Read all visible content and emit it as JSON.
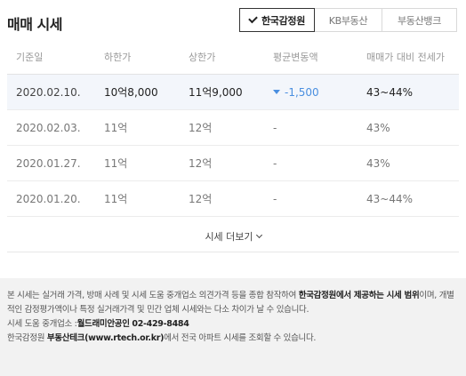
{
  "header": {
    "title": "매매 시세",
    "tabs": [
      {
        "label": "한국감정원",
        "active": true
      },
      {
        "label": "KB부동산",
        "active": false
      },
      {
        "label": "부동산뱅크",
        "active": false
      }
    ]
  },
  "table": {
    "columns": [
      "기준일",
      "하한가",
      "상한가",
      "평균변동액",
      "매매가 대비 전세가"
    ],
    "rows": [
      {
        "date": "2020.02.10.",
        "low": "10억8,000",
        "high": "11억9,000",
        "change": "-1,500",
        "change_direction": "down",
        "ratio": "43~44%",
        "highlight": true
      },
      {
        "date": "2020.02.03.",
        "low": "11억",
        "high": "12억",
        "change": "-",
        "ratio": "43%"
      },
      {
        "date": "2020.01.27.",
        "low": "11억",
        "high": "12억",
        "change": "-",
        "ratio": "43%"
      },
      {
        "date": "2020.01.20.",
        "low": "11억",
        "high": "12억",
        "change": "-",
        "ratio": "43~44%"
      }
    ],
    "more_label": "시세 더보기"
  },
  "notice": {
    "line1_a": "본 시세는 실거래 가격, 방매 사례 및 시세 도움 중개업소 의견가격 등을 종합 참작하여 ",
    "line1_b": "한국감정원에서 제공하는 시세 범위",
    "line1_c": "이며, 개별적인 감정평가액이나 특정 실거래가격 및 민간 업체 시세와는 다소 차이가 날 수 있습니다.",
    "helper_prefix": "시세 도움 중개업소 :",
    "helper_name": "월드래미안공인",
    "helper_phone": "02-429-8484",
    "line3_a": "한국감정원 ",
    "line3_b": "부동산테크(www.rtech.or.kr)",
    "line3_c": "에서 전국 아파트 시세를 조회할 수 있습니다.",
    "accent_color": "#4a8fe0"
  }
}
